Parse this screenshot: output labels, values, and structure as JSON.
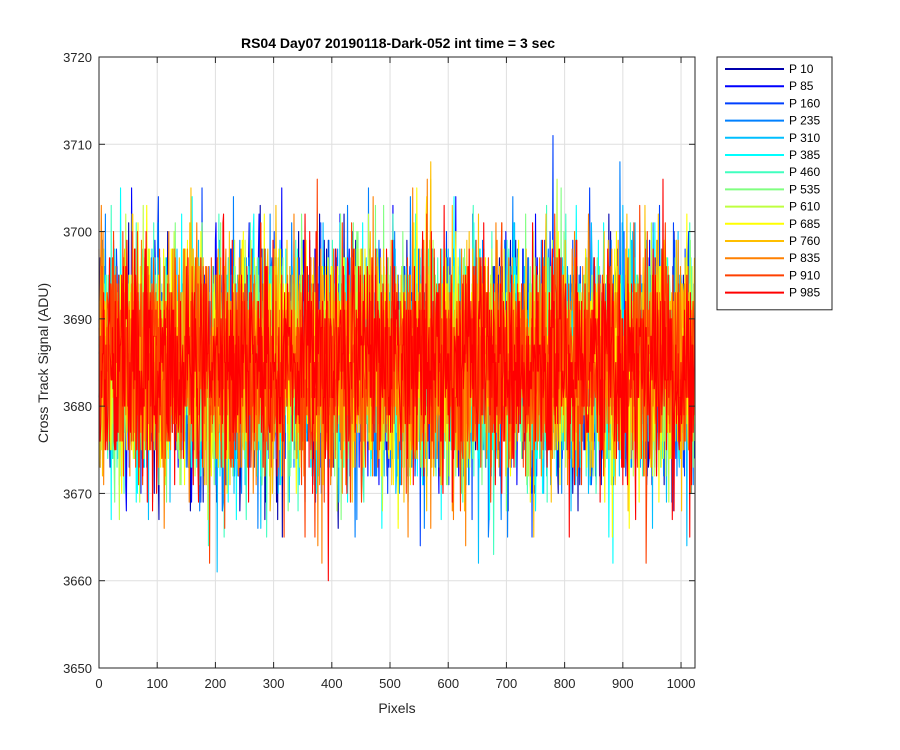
{
  "chart_data": {
    "type": "line",
    "title": "RS04 Day07 20190118-Dark-052 int time = 3 sec",
    "xlabel": "Pixels",
    "ylabel": "Cross Track Signal (ADU)",
    "xlim": [
      0,
      1024
    ],
    "ylim": [
      3650,
      3720
    ],
    "x_ticks": [
      "0",
      "100",
      "200",
      "300",
      "400",
      "500",
      "600",
      "700",
      "800",
      "900",
      "1000"
    ],
    "y_ticks": [
      "3650",
      "3660",
      "3670",
      "3680",
      "3690",
      "3700",
      "3710",
      "3720"
    ],
    "grid": true,
    "legend_position": "outside-top-right",
    "signal_summary": {
      "typical_mean": 3685,
      "typical_spread_low": 3672,
      "typical_spread_high": 3698,
      "observed_min": 3655,
      "observed_max": 3715
    },
    "series": [
      {
        "name": "P 10",
        "color": "#0000ad"
      },
      {
        "name": "P 85",
        "color": "#0000ff"
      },
      {
        "name": "P 160",
        "color": "#0040ff"
      },
      {
        "name": "P 235",
        "color": "#0080ff"
      },
      {
        "name": "P 310",
        "color": "#00bfff"
      },
      {
        "name": "P 385",
        "color": "#00ffff"
      },
      {
        "name": "P 460",
        "color": "#40ffbf"
      },
      {
        "name": "P 535",
        "color": "#80ff80"
      },
      {
        "name": "P 610",
        "color": "#bfff40"
      },
      {
        "name": "P 685",
        "color": "#ffff00"
      },
      {
        "name": "P 760",
        "color": "#ffbf00"
      },
      {
        "name": "P 835",
        "color": "#ff8000"
      },
      {
        "name": "P 910",
        "color": "#ff4000"
      },
      {
        "name": "P 985",
        "color": "#ff0000"
      }
    ]
  }
}
